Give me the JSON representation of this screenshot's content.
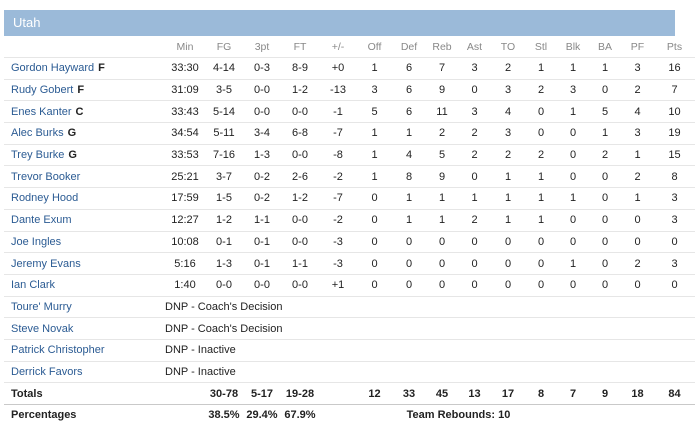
{
  "team": "Utah",
  "columns": [
    "Min",
    "FG",
    "3pt",
    "FT",
    "+/-",
    "Off",
    "Def",
    "Reb",
    "Ast",
    "TO",
    "Stl",
    "Blk",
    "BA",
    "PF",
    "Pts"
  ],
  "players": [
    {
      "name": "Gordon Hayward",
      "pos": "F",
      "stats": [
        "33:30",
        "4-14",
        "0-3",
        "8-9",
        "+0",
        "1",
        "6",
        "7",
        "3",
        "2",
        "1",
        "1",
        "1",
        "3",
        "16"
      ]
    },
    {
      "name": "Rudy Gobert",
      "pos": "F",
      "stats": [
        "31:09",
        "3-5",
        "0-0",
        "1-2",
        "-13",
        "3",
        "6",
        "9",
        "0",
        "3",
        "2",
        "3",
        "0",
        "2",
        "7"
      ]
    },
    {
      "name": "Enes Kanter",
      "pos": "C",
      "stats": [
        "33:43",
        "5-14",
        "0-0",
        "0-0",
        "-1",
        "5",
        "6",
        "11",
        "3",
        "4",
        "0",
        "1",
        "5",
        "4",
        "10"
      ]
    },
    {
      "name": "Alec Burks",
      "pos": "G",
      "stats": [
        "34:54",
        "5-11",
        "3-4",
        "6-8",
        "-7",
        "1",
        "1",
        "2",
        "2",
        "3",
        "0",
        "0",
        "1",
        "3",
        "19"
      ]
    },
    {
      "name": "Trey Burke",
      "pos": "G",
      "stats": [
        "33:53",
        "7-16",
        "1-3",
        "0-0",
        "-8",
        "1",
        "4",
        "5",
        "2",
        "2",
        "2",
        "0",
        "2",
        "1",
        "15"
      ]
    },
    {
      "name": "Trevor Booker",
      "pos": "",
      "stats": [
        "25:21",
        "3-7",
        "0-2",
        "2-6",
        "-2",
        "1",
        "8",
        "9",
        "0",
        "1",
        "1",
        "0",
        "0",
        "2",
        "8"
      ]
    },
    {
      "name": "Rodney Hood",
      "pos": "",
      "stats": [
        "17:59",
        "1-5",
        "0-2",
        "1-2",
        "-7",
        "0",
        "1",
        "1",
        "1",
        "1",
        "1",
        "1",
        "0",
        "1",
        "3"
      ]
    },
    {
      "name": "Dante Exum",
      "pos": "",
      "stats": [
        "12:27",
        "1-2",
        "1-1",
        "0-0",
        "-2",
        "0",
        "1",
        "1",
        "2",
        "1",
        "1",
        "0",
        "0",
        "0",
        "3"
      ]
    },
    {
      "name": "Joe Ingles",
      "pos": "",
      "stats": [
        "10:08",
        "0-1",
        "0-1",
        "0-0",
        "-3",
        "0",
        "0",
        "0",
        "0",
        "0",
        "0",
        "0",
        "0",
        "0",
        "0"
      ]
    },
    {
      "name": "Jeremy Evans",
      "pos": "",
      "stats": [
        "5:16",
        "1-3",
        "0-1",
        "1-1",
        "-3",
        "0",
        "0",
        "0",
        "0",
        "0",
        "0",
        "1",
        "0",
        "2",
        "3"
      ]
    },
    {
      "name": "Ian Clark",
      "pos": "",
      "stats": [
        "1:40",
        "0-0",
        "0-0",
        "0-0",
        "+1",
        "0",
        "0",
        "0",
        "0",
        "0",
        "0",
        "0",
        "0",
        "0",
        "0"
      ]
    }
  ],
  "dnp": [
    {
      "name": "Toure' Murry",
      "reason": "DNP - Coach's Decision"
    },
    {
      "name": "Steve Novak",
      "reason": "DNP - Coach's Decision"
    },
    {
      "name": "Patrick Christopher",
      "reason": "DNP - Inactive"
    },
    {
      "name": "Derrick Favors",
      "reason": "DNP - Inactive"
    }
  ],
  "totals": {
    "label": "Totals",
    "fg": "30-78",
    "three": "5-17",
    "ft": "19-28",
    "off": "12",
    "def": "33",
    "reb": "45",
    "ast": "13",
    "to": "17",
    "stl": "8",
    "blk": "7",
    "ba": "9",
    "pf": "18",
    "pts": "84"
  },
  "percentages": {
    "label": "Percentages",
    "fg": "38.5%",
    "three": "29.4%",
    "ft": "67.9%",
    "team_rebounds": "Team Rebounds: 10"
  }
}
